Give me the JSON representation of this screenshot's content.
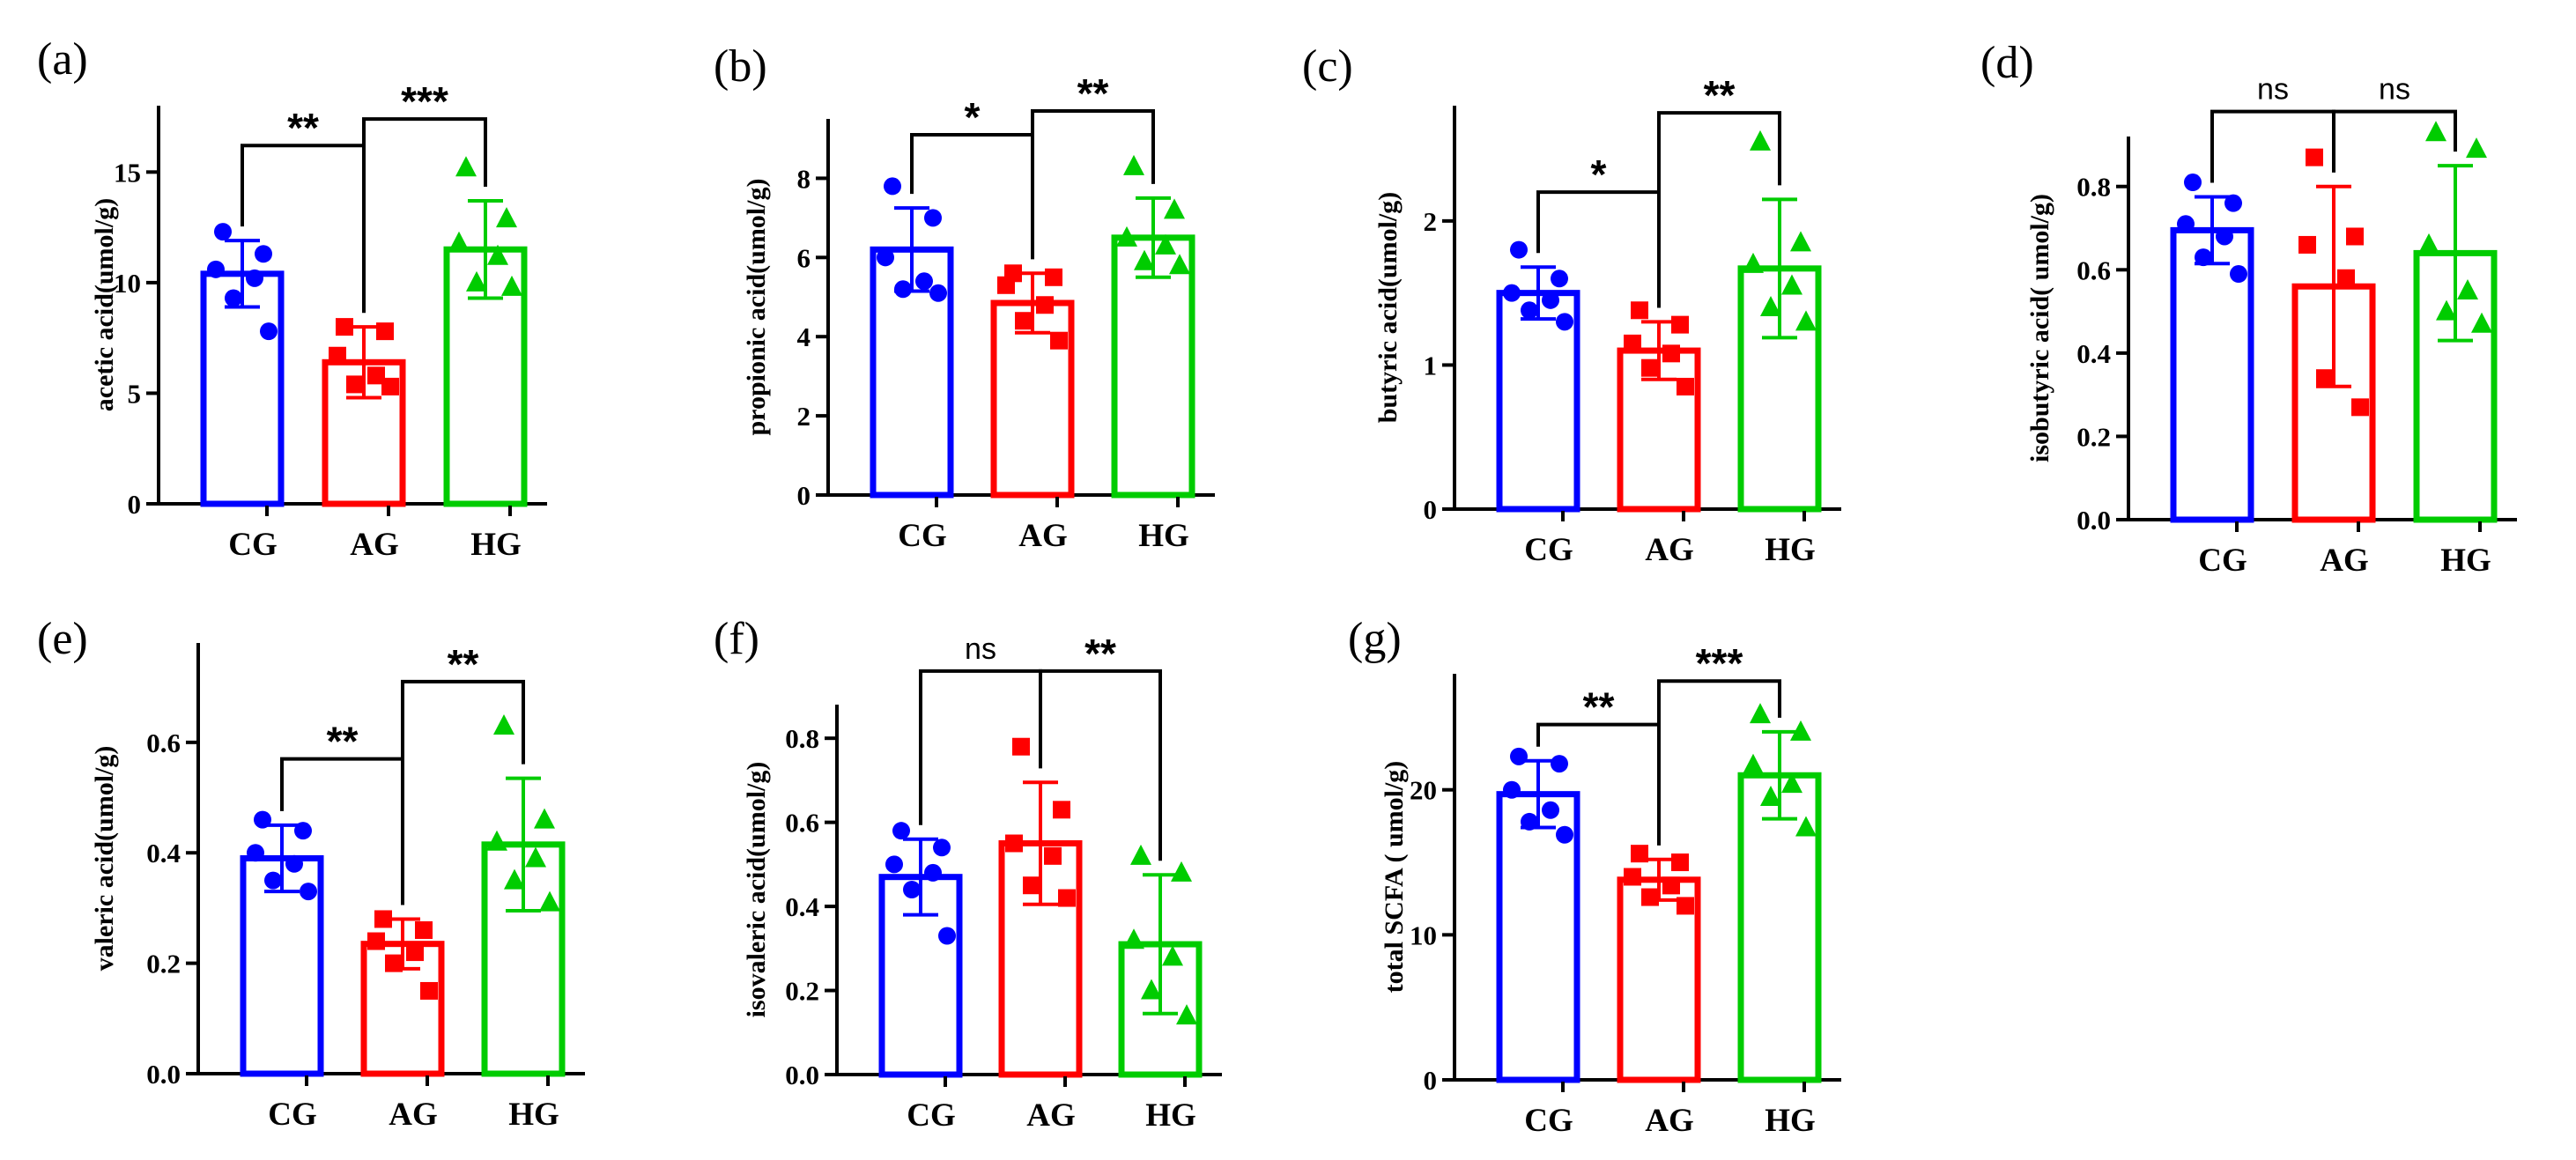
{
  "figure": {
    "groups": [
      "CG",
      "AG",
      "HG"
    ],
    "colors": {
      "CG": "#0000ff",
      "AG": "#ff0000",
      "HG": "#00cc00",
      "axis": "#000000"
    },
    "markers": {
      "CG": "circle",
      "AG": "square",
      "HG": "triangle"
    }
  },
  "chart_data": [
    {
      "id": "a",
      "type": "bar",
      "panel_label": "(a)",
      "ylabel": "acetic acid(umol/g)",
      "categories": [
        "CG",
        "AG",
        "HG"
      ],
      "values": [
        10.4,
        6.4,
        11.5
      ],
      "sd": [
        1.5,
        1.6,
        2.2
      ],
      "points": [
        [
          12.3,
          11.3,
          10.6,
          10.2,
          9.3,
          7.8
        ],
        [
          8.0,
          7.8,
          6.7,
          5.8,
          5.4,
          5.3
        ],
        [
          15.2,
          12.9,
          11.8,
          11.2,
          10.0,
          9.8
        ]
      ],
      "ylim": [
        0,
        18
      ],
      "yticks": [
        0,
        5,
        10,
        15
      ],
      "ytick_labels": [
        "0",
        "5",
        "10",
        "15"
      ],
      "significance": [
        {
          "from": 0,
          "to": 1,
          "label": "**",
          "y": 16.2
        },
        {
          "from": 1,
          "to": 2,
          "label": "***",
          "y": 17.4
        }
      ]
    },
    {
      "id": "b",
      "type": "bar",
      "panel_label": "(b)",
      "ylabel": "propionic acid(umol/g)",
      "categories": [
        "CG",
        "AG",
        "HG"
      ],
      "values": [
        6.2,
        4.85,
        6.5
      ],
      "sd": [
        1.05,
        0.75,
        1.0
      ],
      "points": [
        [
          7.8,
          7.0,
          6.0,
          5.4,
          5.2,
          5.1
        ],
        [
          5.6,
          5.5,
          5.3,
          4.8,
          4.4,
          3.9
        ],
        [
          8.3,
          7.2,
          6.5,
          6.3,
          5.9,
          5.8
        ]
      ],
      "ylim": [
        0,
        9.5
      ],
      "yticks": [
        0,
        2,
        4,
        6,
        8
      ],
      "ytick_labels": [
        "0",
        "2",
        "4",
        "6",
        "8"
      ],
      "significance": [
        {
          "from": 0,
          "to": 1,
          "label": "*",
          "y": 9.1
        },
        {
          "from": 1,
          "to": 2,
          "label": "**",
          "y": 9.7
        }
      ]
    },
    {
      "id": "c",
      "type": "bar",
      "panel_label": "(c)",
      "ylabel": "butyric acid(umol/g)",
      "categories": [
        "CG",
        "AG",
        "HG"
      ],
      "values": [
        1.5,
        1.1,
        1.67
      ],
      "sd": [
        0.18,
        0.2,
        0.48
      ],
      "points": [
        [
          1.8,
          1.6,
          1.5,
          1.45,
          1.38,
          1.3
        ],
        [
          1.38,
          1.28,
          1.15,
          1.08,
          0.98,
          0.85
        ],
        [
          2.55,
          1.85,
          1.7,
          1.55,
          1.4,
          1.3
        ]
      ],
      "ylim": [
        0,
        2.8
      ],
      "yticks": [
        0,
        1,
        2
      ],
      "ytick_labels": [
        "0",
        "1",
        "2"
      ],
      "significance": [
        {
          "from": 0,
          "to": 1,
          "label": "*",
          "y": 2.2
        },
        {
          "from": 1,
          "to": 2,
          "label": "**",
          "y": 2.75
        }
      ]
    },
    {
      "id": "d",
      "type": "bar",
      "panel_label": "(d)",
      "ylabel": "isobutyric acid( umol/g)",
      "categories": [
        "CG",
        "AG",
        "HG"
      ],
      "values": [
        0.695,
        0.56,
        0.64
      ],
      "sd": [
        0.08,
        0.24,
        0.21
      ],
      "points": [
        [
          0.81,
          0.76,
          0.71,
          0.68,
          0.63,
          0.59
        ],
        [
          0.87,
          0.68,
          0.66,
          0.58,
          0.34,
          0.27
        ],
        [
          0.93,
          0.89,
          0.66,
          0.55,
          0.5,
          0.47
        ]
      ],
      "ylim": [
        0,
        0.92
      ],
      "yticks": [
        0,
        0.2,
        0.4,
        0.6,
        0.8
      ],
      "ytick_labels": [
        "0.0",
        "0.2",
        "0.4",
        "0.6",
        "0.8"
      ],
      "significance": [
        {
          "from": 0,
          "to": 1,
          "label": "ns",
          "y": 0.98
        },
        {
          "from": 1,
          "to": 2,
          "label": "ns",
          "y": 0.98
        }
      ]
    },
    {
      "id": "e",
      "type": "bar",
      "panel_label": "(e)",
      "ylabel": "valeric acid(umol/g)",
      "categories": [
        "CG",
        "AG",
        "HG"
      ],
      "values": [
        0.39,
        0.235,
        0.415
      ],
      "sd": [
        0.06,
        0.045,
        0.12
      ],
      "points": [
        [
          0.46,
          0.44,
          0.4,
          0.38,
          0.35,
          0.33
        ],
        [
          0.28,
          0.26,
          0.24,
          0.22,
          0.2,
          0.15
        ],
        [
          0.63,
          0.46,
          0.42,
          0.39,
          0.35,
          0.31
        ]
      ],
      "ylim": [
        0,
        0.78
      ],
      "yticks": [
        0,
        0.2,
        0.4,
        0.6
      ],
      "ytick_labels": [
        "0.0",
        "0.2",
        "0.4",
        "0.6"
      ],
      "significance": [
        {
          "from": 0,
          "to": 1,
          "label": "**",
          "y": 0.57
        },
        {
          "from": 1,
          "to": 2,
          "label": "**",
          "y": 0.71
        }
      ]
    },
    {
      "id": "f",
      "type": "bar",
      "panel_label": "(f)",
      "ylabel": "isovaleric acid(umol/g)",
      "categories": [
        "CG",
        "AG",
        "HG"
      ],
      "values": [
        0.47,
        0.55,
        0.31
      ],
      "sd": [
        0.09,
        0.145,
        0.165
      ],
      "points": [
        [
          0.58,
          0.54,
          0.5,
          0.48,
          0.44,
          0.33
        ],
        [
          0.78,
          0.63,
          0.55,
          0.52,
          0.45,
          0.42
        ],
        [
          0.52,
          0.48,
          0.32,
          0.28,
          0.2,
          0.14
        ]
      ],
      "ylim": [
        0,
        0.88
      ],
      "yticks": [
        0,
        0.2,
        0.4,
        0.6,
        0.8
      ],
      "ytick_labels": [
        "0.0",
        "0.2",
        "0.4",
        "0.6",
        "0.8"
      ],
      "significance": [
        {
          "from": 0,
          "to": 1,
          "label": "ns",
          "y": 0.96
        },
        {
          "from": 1,
          "to": 2,
          "label": "**",
          "y": 0.96
        }
      ]
    },
    {
      "id": "g",
      "type": "bar",
      "panel_label": "(g)",
      "ylabel": "total SCFA ( umol/g)",
      "categories": [
        "CG",
        "AG",
        "HG"
      ],
      "values": [
        19.7,
        13.8,
        21.0
      ],
      "sd": [
        2.3,
        1.4,
        3.0
      ],
      "points": [
        [
          22.3,
          21.8,
          20.0,
          18.6,
          17.8,
          16.9
        ],
        [
          15.6,
          15.0,
          14.0,
          13.4,
          12.6,
          12.0
        ],
        [
          25.2,
          24.0,
          21.7,
          20.4,
          19.5,
          17.4
        ]
      ],
      "ylim": [
        0,
        28
      ],
      "yticks": [
        0,
        10,
        20
      ],
      "ytick_labels": [
        "0",
        "10",
        "20"
      ],
      "significance": [
        {
          "from": 0,
          "to": 1,
          "label": "**",
          "y": 24.5
        },
        {
          "from": 1,
          "to": 2,
          "label": "***",
          "y": 27.5
        }
      ]
    }
  ]
}
